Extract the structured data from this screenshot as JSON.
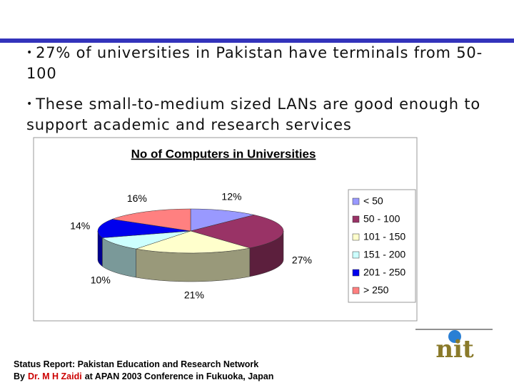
{
  "bullets": [
    "27% of universities in Pakistan have terminals from 50-100",
    "These small-to-medium sized LANs are good enough to support academic and research services"
  ],
  "chart_data": {
    "type": "pie3d",
    "title": "No of Computers in Universities",
    "categories": [
      "< 50",
      "50 - 100",
      "101 - 150",
      "151 - 200",
      "201 - 250",
      "> 250"
    ],
    "values": [
      12,
      27,
      21,
      10,
      14,
      16
    ],
    "value_labels": [
      "12%",
      "27%",
      "21%",
      "10%",
      "14%",
      "16%"
    ],
    "colors": [
      "#9999ff",
      "#993366",
      "#ffffcc",
      "#ccffff",
      "#0000ee",
      "#ff8080"
    ],
    "legend": "right"
  },
  "footer": {
    "line1": "Status Report: Pakistan Education and Research Network",
    "line2": [
      "By",
      "Dr. M H Zaidi",
      "at APAN 2003 Conference in Fukuoka, Japan"
    ]
  },
  "logo": {
    "text": "nit"
  }
}
